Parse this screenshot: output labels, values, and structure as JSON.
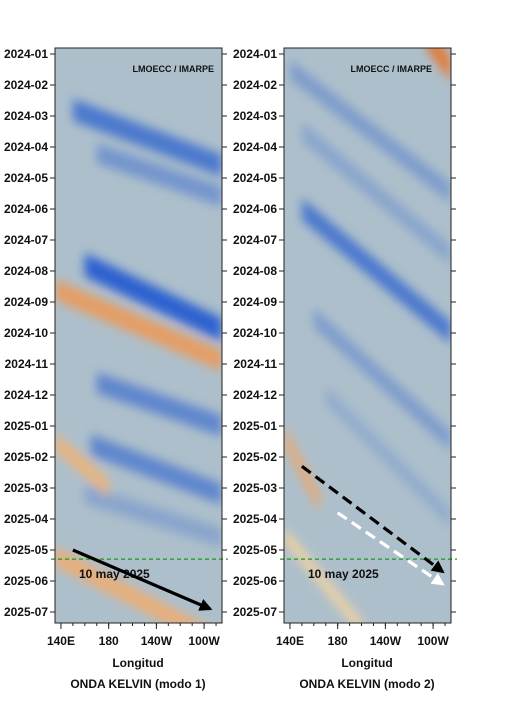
{
  "chart_data": [
    {
      "type": "heatmap",
      "name": "modo1",
      "credit": "LMOECC / IMARPE",
      "xlabel": "Longitud",
      "title": "ONDA KELVIN (modo 1)",
      "x_ticks": [
        "140E",
        "180",
        "140W",
        "100W"
      ],
      "x_tick_values": [
        140,
        180,
        220,
        260
      ],
      "xlim": [
        135,
        275
      ],
      "y_ticks": [
        "2024-01",
        "2024-02",
        "2024-03",
        "2024-04",
        "2024-05",
        "2024-06",
        "2024-07",
        "2024-08",
        "2024-09",
        "2024-10",
        "2024-11",
        "2024-12",
        "2025-01",
        "2025-02",
        "2025-03",
        "2025-04",
        "2025-05",
        "2025-06",
        "2025-07"
      ],
      "reference_line": {
        "date": "2025-05-10",
        "label": "10 may 2025",
        "color": "#1a9a1a"
      },
      "arrows": [
        {
          "from_lon": 150,
          "from_month": 16.0,
          "to_lon": 265,
          "to_month": 17.9,
          "color": "#000000",
          "style": "solid"
        }
      ],
      "features": [
        {
          "kind": "downwelling",
          "start_lon": 135,
          "start_month": 7.6,
          "end_lon": 275,
          "end_month": 9.9,
          "intensity": 0.7
        },
        {
          "kind": "upwelling",
          "start_lon": 150,
          "start_month": 1.8,
          "end_lon": 275,
          "end_month": 3.6,
          "intensity": -0.8
        },
        {
          "kind": "upwelling",
          "start_lon": 170,
          "start_month": 3.2,
          "end_lon": 275,
          "end_month": 4.6,
          "intensity": -0.6
        },
        {
          "kind": "upwelling",
          "start_lon": 160,
          "start_month": 6.8,
          "end_lon": 275,
          "end_month": 8.9,
          "intensity": -0.95
        },
        {
          "kind": "upwelling",
          "start_lon": 170,
          "start_month": 10.6,
          "end_lon": 275,
          "end_month": 12.0,
          "intensity": -0.7
        },
        {
          "kind": "upwelling",
          "start_lon": 165,
          "start_month": 12.6,
          "end_lon": 275,
          "end_month": 14.2,
          "intensity": -0.7
        },
        {
          "kind": "upwelling",
          "start_lon": 160,
          "start_month": 14.2,
          "end_lon": 275,
          "end_month": 15.6,
          "intensity": -0.5
        },
        {
          "kind": "downwelling",
          "start_lon": 135,
          "start_month": 16.2,
          "end_lon": 275,
          "end_month": 19.0,
          "intensity": 0.55
        },
        {
          "kind": "downwelling",
          "start_lon": 135,
          "start_month": 12.5,
          "end_lon": 180,
          "end_month": 14.0,
          "intensity": 0.5
        }
      ],
      "colorscale": {
        "negative": "#1450d0",
        "neutral": "#f5f3c8",
        "positive": "#e8742a"
      }
    },
    {
      "type": "heatmap",
      "name": "modo2",
      "credit": "LMOECC / IMARPE",
      "xlabel": "Longitud",
      "title": "ONDA KELVIN (modo 2)",
      "x_ticks": [
        "140E",
        "180",
        "140W",
        "100W"
      ],
      "x_tick_values": [
        140,
        180,
        220,
        260
      ],
      "xlim": [
        135,
        275
      ],
      "y_ticks": [
        "2024-01",
        "2024-02",
        "2024-03",
        "2024-04",
        "2024-05",
        "2024-06",
        "2024-07",
        "2024-08",
        "2024-09",
        "2024-10",
        "2024-11",
        "2024-12",
        "2025-01",
        "2025-02",
        "2025-03",
        "2025-04",
        "2025-05",
        "2025-06",
        "2025-07"
      ],
      "reference_line": {
        "date": "2025-05-10",
        "label": "10 may 2025",
        "color": "#1a9a1a"
      },
      "arrows": [
        {
          "from_lon": 150,
          "from_month": 13.3,
          "to_lon": 268,
          "to_month": 16.7,
          "color": "#000000",
          "style": "dashed"
        },
        {
          "from_lon": 180,
          "from_month": 14.8,
          "to_lon": 268,
          "to_month": 17.1,
          "color": "#ffffff",
          "style": "dashed"
        }
      ],
      "features": [
        {
          "kind": "downwelling",
          "start_lon": 255,
          "start_month": -0.5,
          "end_lon": 275,
          "end_month": 0.5,
          "intensity": 1.0
        },
        {
          "kind": "upwelling",
          "start_lon": 140,
          "start_month": 0.5,
          "end_lon": 275,
          "end_month": 4.5,
          "intensity": -0.55
        },
        {
          "kind": "upwelling",
          "start_lon": 150,
          "start_month": 2.5,
          "end_lon": 275,
          "end_month": 6.5,
          "intensity": -0.5
        },
        {
          "kind": "upwelling",
          "start_lon": 150,
          "start_month": 5.0,
          "end_lon": 275,
          "end_month": 9.0,
          "intensity": -0.8
        },
        {
          "kind": "upwelling",
          "start_lon": 160,
          "start_month": 8.5,
          "end_lon": 275,
          "end_month": 12.5,
          "intensity": -0.55
        },
        {
          "kind": "upwelling",
          "start_lon": 170,
          "start_month": 11.0,
          "end_lon": 275,
          "end_month": 15.0,
          "intensity": -0.45
        },
        {
          "kind": "downwelling",
          "start_lon": 135,
          "start_month": 12.3,
          "end_lon": 165,
          "end_month": 14.5,
          "intensity": 0.6
        },
        {
          "kind": "downwelling",
          "start_lon": 135,
          "start_month": 15.5,
          "end_lon": 200,
          "end_month": 18.5,
          "intensity": 0.25
        }
      ],
      "colorscale": {
        "negative": "#1450d0",
        "neutral": "#f5f3c8",
        "positive": "#e8742a"
      }
    }
  ]
}
